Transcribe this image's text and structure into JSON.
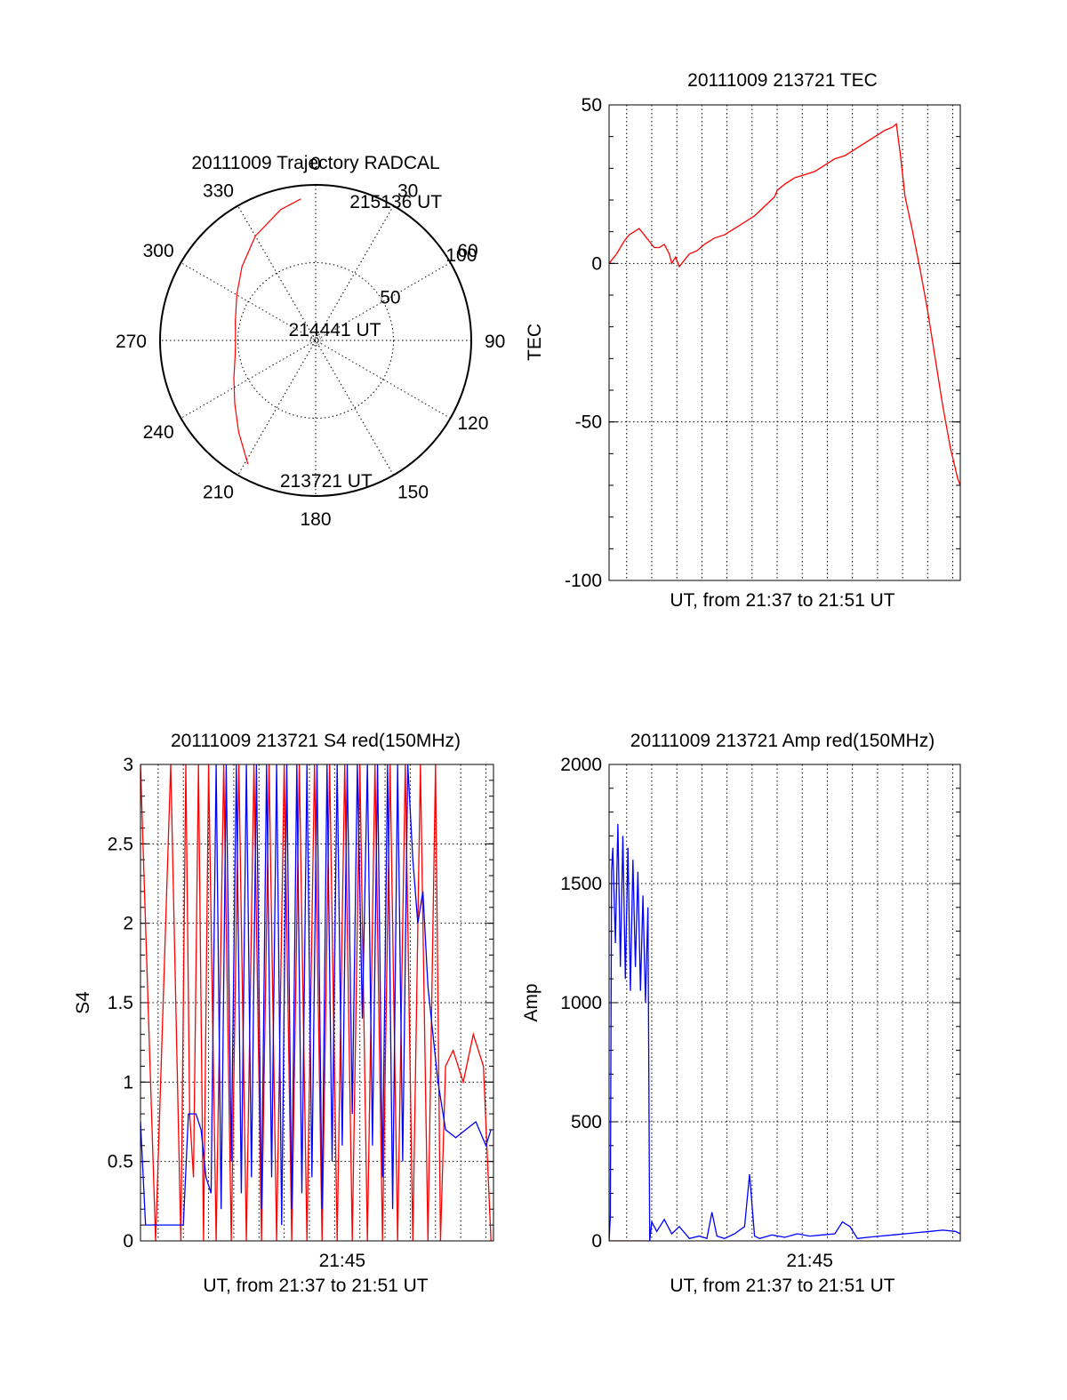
{
  "colors": {
    "red": "#ff0000",
    "blue": "#0000ff",
    "grid": "#000000"
  },
  "chart_data": [
    {
      "type": "polar",
      "id": "trajectory",
      "title": "20111009 Trajectory RADCAL",
      "azimuth_labels": [
        "0",
        "30",
        "60",
        "90",
        "120",
        "150",
        "180",
        "210",
        "240",
        "270",
        "300",
        "330"
      ],
      "azimuths_deg": [
        0,
        30,
        60,
        90,
        120,
        150,
        180,
        210,
        240,
        270,
        300,
        330
      ],
      "radius_labels": [
        "50",
        "100"
      ],
      "radius_values": [
        50,
        100
      ],
      "rmax": 100,
      "series": [
        {
          "name": "trajectory",
          "color": "red",
          "points": [
            [
              208.7,
              90.7
            ],
            [
              220,
              77
            ],
            [
              232,
              66
            ],
            [
              245,
              58
            ],
            [
              260,
              52.5
            ],
            [
              270,
              51.5
            ],
            [
              283,
              53
            ],
            [
              300,
              58.5
            ],
            [
              315,
              67
            ],
            [
              330,
              77.5
            ],
            [
              345,
              87
            ],
            [
              354,
              91.5
            ]
          ]
        }
      ],
      "annotations": [
        {
          "text": "215136 UT",
          "az": 13,
          "r": 92
        },
        {
          "text": "214441 UT",
          "az": 292,
          "r": 20
        },
        {
          "text": "213721 UT",
          "az": 195,
          "r": 93
        }
      ]
    },
    {
      "type": "line",
      "id": "tec",
      "title": "20111009 213721 TEC",
      "xlabel": "UT, from 21:37 to 21:51 UT",
      "ylabel": "TEC",
      "xlim": [
        0,
        14
      ],
      "ylim": [
        -100,
        50
      ],
      "yticks": [
        -100,
        -50,
        0,
        50
      ],
      "ytick_labels": [
        "-100",
        "-50",
        "0",
        "50"
      ],
      "xgrid": [
        0.7,
        1.7,
        2.7,
        3.7,
        4.7,
        5.7,
        6.7,
        7.7,
        8.7,
        9.7,
        10.7,
        11.7,
        12.7,
        13.7
      ],
      "series": [
        {
          "name": "TEC",
          "color": "red",
          "x": [
            0.0,
            0.3,
            0.6,
            0.8,
            1.0,
            1.2,
            1.4,
            1.6,
            1.8,
            2.0,
            2.2,
            2.4,
            2.5,
            2.65,
            2.8,
            3.0,
            3.2,
            3.5,
            3.8,
            4.2,
            4.6,
            5.0,
            5.4,
            5.8,
            6.2,
            6.6,
            6.7,
            7.0,
            7.4,
            7.8,
            8.2,
            8.6,
            9.0,
            9.4,
            9.8,
            10.2,
            10.6,
            11.0,
            11.3,
            11.45,
            11.6,
            11.8,
            12.1,
            12.4,
            12.7,
            13.0,
            13.3,
            13.6,
            13.9,
            14.0
          ],
          "y": [
            0,
            3,
            7,
            9,
            10,
            11,
            9,
            7,
            5,
            5,
            6,
            3,
            0,
            2,
            -1,
            1,
            3,
            4,
            6,
            8,
            9,
            11,
            13,
            15,
            18,
            21,
            23,
            25,
            27,
            28,
            29,
            31,
            33,
            34,
            36,
            38,
            40,
            42,
            43,
            44,
            35,
            21,
            10,
            -2,
            -15,
            -30,
            -45,
            -58,
            -68,
            -70
          ]
        }
      ]
    },
    {
      "type": "line",
      "id": "s4",
      "title": "20111009 213721 S4 red(150MHz)",
      "xlabel": "UT, from 21:37 to 21:51 UT",
      "ylabel": "S4",
      "xlim": [
        0,
        14
      ],
      "ylim": [
        0,
        3
      ],
      "yticks": [
        0,
        0.5,
        1,
        1.5,
        2,
        2.5,
        3
      ],
      "ytick_labels": [
        "0",
        "0.5",
        "1",
        "1.5",
        "2",
        "2.5",
        "3"
      ],
      "xticks": [
        8
      ],
      "xtick_labels": [
        "21:45"
      ],
      "xgrid": [
        0.7,
        1.7,
        2.7,
        3.7,
        4.7,
        5.7,
        6.7,
        7.7,
        8.7,
        9.7,
        10.7,
        11.7,
        12.7,
        13.7
      ],
      "series": [
        {
          "name": "S4 red",
          "color": "red",
          "x": [
            0.0,
            0.6,
            1.2,
            1.6,
            1.8,
            1.95,
            2.1,
            2.3,
            2.5,
            2.7,
            3.0,
            3.3,
            3.6,
            3.9,
            4.2,
            4.5,
            4.8,
            5.1,
            5.4,
            5.7,
            6.0,
            6.3,
            6.6,
            6.9,
            7.2,
            7.5,
            7.8,
            8.1,
            8.4,
            8.7,
            9.0,
            9.3,
            9.6,
            9.9,
            10.2,
            10.5,
            10.8,
            11.1,
            11.4,
            11.7,
            11.9,
            12.1,
            12.4,
            12.8,
            13.2,
            13.6,
            13.9
          ],
          "y": [
            3.0,
            0.0,
            3.0,
            0.0,
            3.0,
            0.8,
            0.4,
            3.0,
            0.0,
            3.0,
            0.0,
            3.0,
            0.0,
            3.0,
            0.0,
            3.0,
            0.0,
            3.0,
            0.0,
            3.0,
            0.0,
            3.0,
            0.0,
            3.0,
            0.0,
            3.0,
            0.0,
            3.0,
            0.0,
            3.0,
            0.0,
            3.0,
            0.0,
            3.0,
            0.0,
            3.0,
            0.0,
            3.0,
            0.0,
            3.0,
            0.0,
            1.1,
            1.2,
            1.0,
            1.3,
            1.1,
            0.0
          ]
        },
        {
          "name": "S4 blue",
          "color": "blue",
          "x": [
            0.0,
            0.2,
            0.6,
            1.0,
            1.4,
            1.7,
            1.9,
            2.2,
            2.4,
            2.6,
            2.8,
            3.0,
            3.2,
            3.4,
            3.6,
            3.8,
            4.0,
            4.2,
            4.4,
            4.6,
            4.8,
            5.0,
            5.2,
            5.4,
            5.6,
            5.8,
            6.0,
            6.2,
            6.4,
            6.6,
            6.8,
            7.0,
            7.2,
            7.4,
            7.6,
            7.8,
            8.0,
            8.2,
            8.4,
            8.6,
            8.8,
            9.0,
            9.2,
            9.4,
            9.6,
            9.8,
            10.0,
            10.2,
            10.4,
            10.6,
            10.8,
            11.0,
            11.2,
            11.4,
            11.6,
            11.8,
            12.1,
            12.5,
            12.9,
            13.3,
            13.7,
            13.9
          ],
          "y": [
            0.75,
            0.1,
            0.1,
            0.1,
            0.1,
            0.1,
            0.8,
            0.8,
            0.7,
            0.4,
            0.3,
            3.0,
            0.2,
            3.0,
            0.5,
            3.0,
            0.3,
            3.0,
            0.4,
            3.0,
            0.2,
            3.0,
            0.4,
            3.0,
            0.1,
            3.0,
            0.2,
            3.0,
            0.3,
            3.0,
            0.4,
            3.0,
            0.2,
            3.0,
            0.5,
            3.0,
            0.6,
            3.0,
            0.8,
            3.0,
            1.4,
            3.0,
            0.6,
            3.0,
            0.4,
            3.0,
            0.2,
            3.0,
            0.5,
            3.0,
            2.4,
            2.0,
            2.2,
            1.6,
            1.3,
            1.0,
            0.7,
            0.65,
            0.7,
            0.75,
            0.6,
            0.7
          ]
        }
      ]
    },
    {
      "type": "line",
      "id": "amp",
      "title": "20111009 213721 Amp red(150MHz)",
      "xlabel": "UT, from 21:37 to 21:51 UT",
      "ylabel": "Amp",
      "xlim": [
        0,
        14
      ],
      "ylim": [
        0,
        2000
      ],
      "yticks": [
        0,
        500,
        1000,
        1500,
        2000
      ],
      "ytick_labels": [
        "0",
        "500",
        "1000",
        "1500",
        "2000"
      ],
      "xticks": [
        8
      ],
      "xtick_labels": [
        "21:45"
      ],
      "xgrid": [
        0.7,
        1.7,
        2.7,
        3.7,
        4.7,
        5.7,
        6.7,
        7.7,
        8.7,
        9.7,
        10.7,
        11.7,
        12.7,
        13.7
      ],
      "series": [
        {
          "name": "Amp red",
          "color": "red",
          "x": [
            0.0,
            1.6
          ],
          "y": [
            0,
            0
          ]
        },
        {
          "name": "Amp blue",
          "color": "blue",
          "x": [
            0.0,
            0.05,
            0.1,
            0.15,
            0.25,
            0.35,
            0.45,
            0.55,
            0.65,
            0.75,
            0.85,
            0.95,
            1.05,
            1.15,
            1.25,
            1.35,
            1.45,
            1.55,
            1.62,
            1.7,
            1.9,
            2.2,
            2.5,
            2.8,
            3.2,
            3.6,
            3.9,
            4.1,
            4.3,
            4.6,
            5.0,
            5.4,
            5.6,
            5.7,
            5.8,
            6.0,
            6.5,
            7.0,
            7.5,
            8.0,
            8.5,
            9.0,
            9.3,
            9.6,
            9.9,
            10.3,
            10.8,
            11.3,
            11.8,
            12.3,
            12.8,
            13.3,
            13.8,
            14.0
          ],
          "y": [
            0,
            100,
            1550,
            1650,
            1250,
            1750,
            1150,
            1700,
            1100,
            1650,
            1050,
            1600,
            1150,
            1550,
            1050,
            1450,
            1000,
            1400,
            0,
            80,
            40,
            90,
            30,
            60,
            10,
            20,
            10,
            120,
            20,
            10,
            30,
            60,
            280,
            150,
            20,
            10,
            25,
            15,
            30,
            20,
            25,
            30,
            80,
            60,
            10,
            15,
            20,
            25,
            30,
            35,
            40,
            45,
            40,
            30
          ]
        }
      ]
    }
  ]
}
